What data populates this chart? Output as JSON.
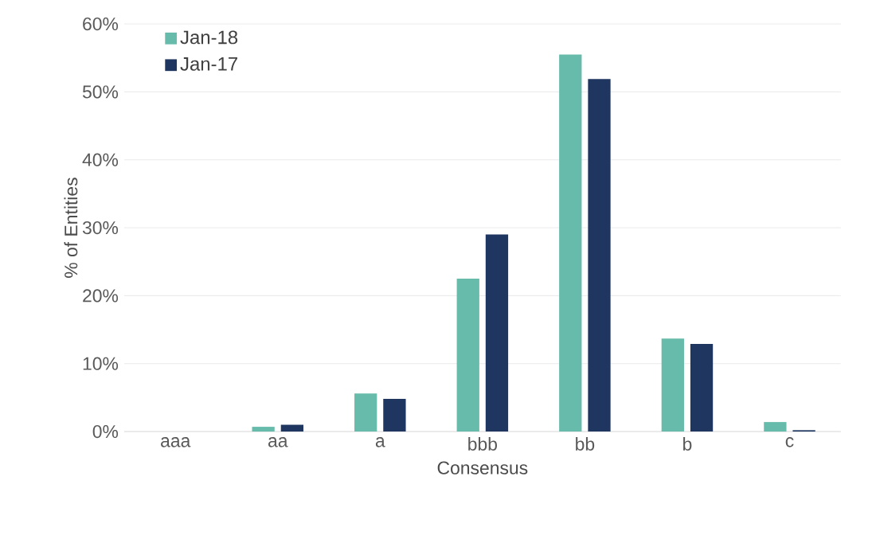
{
  "chart_data": {
    "type": "bar",
    "xlabel": "Consensus",
    "ylabel": "% of Entities",
    "categories": [
      "aaa",
      "aa",
      "a",
      "bbb",
      "bb",
      "b",
      "c"
    ],
    "series": [
      {
        "name": "Jan-18",
        "color": "#66bbaa",
        "values": [
          0,
          0.7,
          5.6,
          22.5,
          55.5,
          13.7,
          1.4
        ]
      },
      {
        "name": "Jan-17",
        "color": "#1f3660",
        "values": [
          0,
          1.0,
          4.8,
          29.0,
          51.9,
          12.9,
          0.2
        ]
      }
    ],
    "ylim": [
      0,
      60
    ],
    "yticks": [
      {
        "value": 0,
        "label": "0%"
      },
      {
        "value": 10,
        "label": "10%"
      },
      {
        "value": 20,
        "label": "20%"
      },
      {
        "value": 30,
        "label": "30%"
      },
      {
        "value": 40,
        "label": "40%"
      },
      {
        "value": 50,
        "label": "50%"
      },
      {
        "value": 60,
        "label": "60%"
      }
    ],
    "grid": "y",
    "legend": "top left"
  }
}
